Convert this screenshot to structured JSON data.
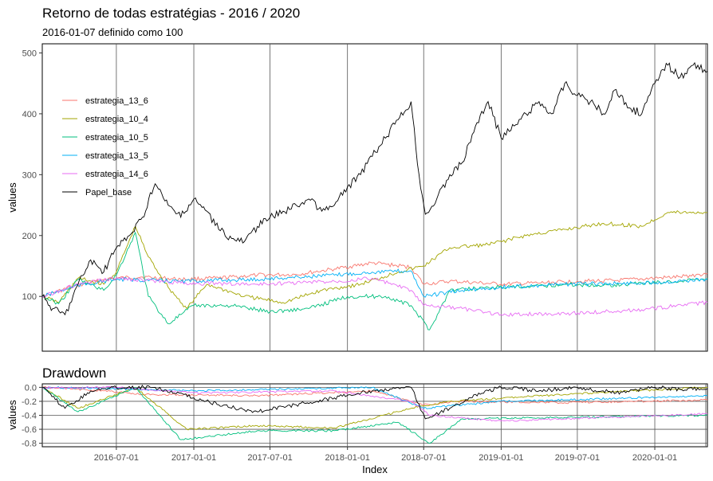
{
  "chart_data": [
    {
      "type": "line",
      "title": "Retorno de todas estratégias - 2016 / 2020",
      "subtitle": "2016-01-07 definido como 100",
      "ylabel": "values",
      "xlabel": "",
      "ylim": [
        10,
        515
      ],
      "yticks": [
        100,
        200,
        300,
        400,
        500
      ],
      "xlim": [
        "2016-01-07",
        "2020-05-05"
      ],
      "vlines": [
        "2016-07-01",
        "2017-01-01",
        "2017-07-01",
        "2018-01-01",
        "2018-07-01",
        "2019-01-01",
        "2019-07-01",
        "2020-01-01",
        "2020-05-01"
      ],
      "legend_position": "left",
      "series": [
        {
          "name": "estrategia_13_6",
          "color": "#F8766D",
          "x": [
            "2016-01-07",
            "2016-03-15",
            "2016-06-01",
            "2016-07-01",
            "2016-09-01",
            "2016-12-01",
            "2017-03-01",
            "2017-06-01",
            "2017-09-01",
            "2017-12-01",
            "2018-03-01",
            "2018-06-01",
            "2018-07-01",
            "2018-09-01",
            "2019-01-01",
            "2019-04-01",
            "2019-07-01",
            "2019-10-01",
            "2020-01-01",
            "2020-03-01",
            "2020-05-05"
          ],
          "y": [
            100,
            115,
            128,
            130,
            132,
            128,
            130,
            135,
            136,
            145,
            155,
            148,
            120,
            125,
            120,
            122,
            125,
            126,
            130,
            132,
            138
          ]
        },
        {
          "name": "estrategia_10_4",
          "color": "#A3A500",
          "x": [
            "2016-01-07",
            "2016-02-15",
            "2016-04-01",
            "2016-06-01",
            "2016-07-01",
            "2016-08-15",
            "2016-09-15",
            "2016-11-01",
            "2016-12-15",
            "2017-02-01",
            "2017-05-01",
            "2017-08-01",
            "2017-11-01",
            "2018-02-01",
            "2018-05-01",
            "2018-07-01",
            "2018-09-01",
            "2018-12-01",
            "2019-03-01",
            "2019-06-01",
            "2019-09-01",
            "2019-12-01",
            "2020-02-01",
            "2020-05-05"
          ],
          "y": [
            100,
            90,
            130,
            120,
            140,
            215,
            165,
            115,
            80,
            120,
            100,
            90,
            110,
            120,
            140,
            150,
            180,
            185,
            200,
            210,
            220,
            215,
            238,
            238
          ]
        },
        {
          "name": "estrategia_10_5",
          "color": "#00BF7D",
          "x": [
            "2016-01-07",
            "2016-02-15",
            "2016-04-01",
            "2016-06-01",
            "2016-07-01",
            "2016-08-15",
            "2016-09-15",
            "2016-11-01",
            "2016-12-01",
            "2017-01-01",
            "2017-04-01",
            "2017-07-01",
            "2017-10-01",
            "2018-01-01",
            "2018-04-01",
            "2018-06-01",
            "2018-07-15",
            "2018-09-01",
            "2018-12-01",
            "2019-03-01",
            "2019-06-01",
            "2019-09-01",
            "2019-12-01",
            "2020-03-01",
            "2020-05-05"
          ],
          "y": [
            100,
            88,
            128,
            110,
            135,
            205,
            100,
            55,
            70,
            85,
            85,
            75,
            80,
            100,
            100,
            85,
            45,
            110,
            115,
            115,
            120,
            118,
            122,
            125,
            130
          ]
        },
        {
          "name": "estrategia_13_5",
          "color": "#00B0F6",
          "x": [
            "2016-01-07",
            "2016-04-01",
            "2016-07-01",
            "2016-12-01",
            "2017-06-01",
            "2017-12-01",
            "2018-03-01",
            "2018-06-01",
            "2018-07-01",
            "2018-10-01",
            "2019-01-01",
            "2019-06-01",
            "2019-12-01",
            "2020-05-05"
          ],
          "y": [
            100,
            118,
            128,
            125,
            128,
            135,
            140,
            142,
            100,
            110,
            115,
            120,
            122,
            128
          ]
        },
        {
          "name": "estrategia_14_6",
          "color": "#E76BF3",
          "x": [
            "2016-01-07",
            "2016-04-01",
            "2016-07-01",
            "2016-12-01",
            "2017-06-01",
            "2017-12-01",
            "2018-03-01",
            "2018-06-01",
            "2018-07-01",
            "2018-10-01",
            "2019-01-01",
            "2019-06-01",
            "2019-12-01",
            "2020-05-05"
          ],
          "y": [
            100,
            120,
            130,
            122,
            120,
            125,
            130,
            110,
            85,
            80,
            70,
            72,
            78,
            90
          ]
        },
        {
          "name": "Papel_base",
          "color": "#000000",
          "x": [
            "2016-01-07",
            "2016-02-01",
            "2016-03-01",
            "2016-04-01",
            "2016-05-01",
            "2016-06-01",
            "2016-07-01",
            "2016-08-01",
            "2016-09-01",
            "2016-10-01",
            "2016-11-01",
            "2016-12-01",
            "2017-01-01",
            "2017-02-01",
            "2017-03-01",
            "2017-04-01",
            "2017-05-01",
            "2017-06-01",
            "2017-07-01",
            "2017-08-01",
            "2017-09-01",
            "2017-10-01",
            "2017-11-01",
            "2017-12-01",
            "2018-01-01",
            "2018-02-01",
            "2018-03-01",
            "2018-04-01",
            "2018-05-01",
            "2018-06-01",
            "2018-06-20",
            "2018-07-05",
            "2018-08-01",
            "2018-09-01",
            "2018-10-01",
            "2018-11-01",
            "2018-12-01",
            "2019-01-01",
            "2019-02-01",
            "2019-03-01",
            "2019-04-01",
            "2019-05-01",
            "2019-06-01",
            "2019-07-01",
            "2019-08-01",
            "2019-09-01",
            "2019-10-01",
            "2019-11-01",
            "2019-12-01",
            "2020-01-01",
            "2020-02-01",
            "2020-03-01",
            "2020-04-01",
            "2020-05-05"
          ],
          "y": [
            100,
            80,
            70,
            120,
            160,
            140,
            180,
            200,
            230,
            285,
            250,
            230,
            260,
            240,
            210,
            195,
            190,
            215,
            230,
            240,
            250,
            260,
            240,
            250,
            280,
            300,
            330,
            360,
            390,
            420,
            300,
            235,
            260,
            300,
            320,
            380,
            420,
            360,
            380,
            400,
            420,
            400,
            450,
            430,
            420,
            400,
            440,
            410,
            400,
            450,
            480,
            460,
            480,
            470
          ]
        }
      ]
    },
    {
      "type": "line",
      "title": "Drawdown",
      "ylabel": "values",
      "xlabel": "Index",
      "ylim": [
        -0.85,
        0.05
      ],
      "yticks": [
        0.0,
        -0.2,
        -0.4,
        -0.6,
        -0.8
      ],
      "ytick_labels": [
        "0.0",
        "-0.2",
        "-0.4",
        "-0.6",
        "-0.8"
      ],
      "xticks": [
        "2016-07-01",
        "2017-01-01",
        "2017-07-01",
        "2018-01-01",
        "2018-07-01",
        "2019-01-01",
        "2019-07-01",
        "2020-01-01"
      ],
      "xlim": [
        "2016-01-07",
        "2020-05-05"
      ],
      "series": [
        {
          "name": "estrategia_13_6",
          "color": "#F8766D",
          "x": [
            "2016-01-07",
            "2016-06-01",
            "2016-09-01",
            "2017-06-01",
            "2018-03-01",
            "2018-07-01",
            "2018-10-01",
            "2019-06-01",
            "2020-05-05"
          ],
          "y": [
            0.0,
            -0.05,
            -0.1,
            -0.12,
            -0.05,
            -0.25,
            -0.2,
            -0.22,
            -0.18
          ]
        },
        {
          "name": "estrategia_10_4",
          "color": "#A3A500",
          "x": [
            "2016-01-07",
            "2016-04-01",
            "2016-08-15",
            "2016-12-15",
            "2017-06-01",
            "2017-12-01",
            "2018-06-01",
            "2018-09-01",
            "2019-06-01",
            "2020-05-05"
          ],
          "y": [
            0.0,
            -0.3,
            0.0,
            -0.6,
            -0.55,
            -0.58,
            -0.3,
            -0.2,
            -0.1,
            0.0
          ]
        },
        {
          "name": "estrategia_10_5",
          "color": "#00BF7D",
          "x": [
            "2016-01-07",
            "2016-04-01",
            "2016-08-15",
            "2016-12-01",
            "2017-06-01",
            "2017-12-01",
            "2018-05-01",
            "2018-07-15",
            "2018-10-01",
            "2019-06-01",
            "2020-05-05"
          ],
          "y": [
            0.0,
            -0.35,
            0.0,
            -0.75,
            -0.62,
            -0.62,
            -0.5,
            -0.8,
            -0.45,
            -0.43,
            -0.4
          ]
        },
        {
          "name": "estrategia_13_5",
          "color": "#00B0F6",
          "x": [
            "2016-01-07",
            "2016-07-01",
            "2017-01-01",
            "2018-03-01",
            "2018-07-01",
            "2019-01-01",
            "2019-06-01",
            "2020-05-05"
          ],
          "y": [
            0.0,
            -0.02,
            -0.05,
            0.0,
            -0.3,
            -0.2,
            -0.18,
            -0.12
          ]
        },
        {
          "name": "estrategia_14_6",
          "color": "#E76BF3",
          "x": [
            "2016-01-07",
            "2016-07-01",
            "2017-01-01",
            "2017-12-01",
            "2018-06-01",
            "2018-07-15",
            "2019-01-01",
            "2019-06-01",
            "2020-05-05"
          ],
          "y": [
            0.0,
            0.0,
            -0.08,
            -0.05,
            -0.2,
            -0.4,
            -0.48,
            -0.45,
            -0.38
          ]
        },
        {
          "name": "Papel_base",
          "color": "#000000",
          "x": [
            "2016-01-07",
            "2016-03-01",
            "2016-05-01",
            "2016-07-01",
            "2016-10-01",
            "2017-01-01",
            "2017-03-01",
            "2017-06-01",
            "2017-09-01",
            "2017-12-01",
            "2018-03-01",
            "2018-06-01",
            "2018-07-05",
            "2018-09-01",
            "2018-11-01",
            "2019-01-01",
            "2019-04-01",
            "2019-07-01",
            "2019-10-01",
            "2020-01-01",
            "2020-03-01",
            "2020-05-05"
          ],
          "y": [
            0.0,
            -0.3,
            -0.05,
            0.0,
            0.0,
            -0.15,
            -0.25,
            -0.35,
            -0.25,
            -0.15,
            -0.05,
            0.0,
            -0.45,
            -0.3,
            -0.1,
            0.0,
            -0.05,
            0.0,
            -0.08,
            0.0,
            -0.03,
            -0.02
          ]
        }
      ]
    }
  ]
}
